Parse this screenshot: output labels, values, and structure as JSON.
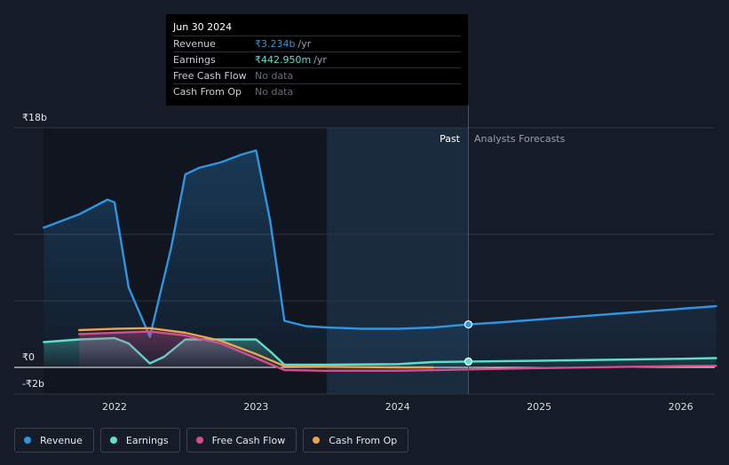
{
  "chart_data": {
    "type": "line",
    "title": "",
    "currency_unit": "₹",
    "y_ticks": [
      {
        "value": 18,
        "label": "₹18b"
      },
      {
        "value": 0,
        "label": "₹0"
      },
      {
        "value": -2,
        "label": "-₹2b"
      }
    ],
    "ylim": [
      -2,
      18
    ],
    "xlim": [
      2021.5,
      2026.25
    ],
    "x_ticks": [
      {
        "value": 2022,
        "label": "2022"
      },
      {
        "value": 2023,
        "label": "2023"
      },
      {
        "value": 2024,
        "label": "2024"
      },
      {
        "value": 2025,
        "label": "2025"
      },
      {
        "value": 2026,
        "label": "2026"
      }
    ],
    "gridlines": [
      18,
      10,
      5,
      0,
      -2
    ],
    "highlight_start": 2023.5,
    "divider_x": 2024.5,
    "past_label": "Past",
    "forecast_label": "Analysts Forecasts",
    "series": [
      {
        "name": "Revenue",
        "color": "#2e95e0",
        "fill": true,
        "x": [
          2021.5,
          2021.75,
          2021.95,
          2022.0,
          2022.1,
          2022.25,
          2022.4,
          2022.5,
          2022.6,
          2022.75,
          2022.9,
          2023.0,
          2023.1,
          2023.2,
          2023.35,
          2023.5,
          2023.75,
          2024.0,
          2024.25,
          2024.5,
          2024.75,
          2025.0,
          2025.5,
          2026.0,
          2026.25
        ],
        "y": [
          10.5,
          11.5,
          12.6,
          12.4,
          6.0,
          2.3,
          9.0,
          14.5,
          15.0,
          15.4,
          16.0,
          16.3,
          11.0,
          3.5,
          3.1,
          3.0,
          2.9,
          2.9,
          3.0,
          3.23,
          3.4,
          3.6,
          4.0,
          4.4,
          4.6
        ]
      },
      {
        "name": "Earnings",
        "color": "#5ce0cc",
        "fill": true,
        "x": [
          2021.5,
          2021.75,
          2022.0,
          2022.1,
          2022.25,
          2022.35,
          2022.5,
          2022.75,
          2023.0,
          2023.1,
          2023.2,
          2023.5,
          2024.0,
          2024.25,
          2024.5,
          2025.0,
          2026.0,
          2026.25
        ],
        "y": [
          1.9,
          2.1,
          2.2,
          1.8,
          0.3,
          0.8,
          2.1,
          2.1,
          2.1,
          1.2,
          0.2,
          0.2,
          0.25,
          0.4,
          0.44,
          0.5,
          0.65,
          0.7
        ]
      },
      {
        "name": "Free Cash Flow",
        "color": "#d14f8e",
        "fill": true,
        "x": [
          2021.75,
          2022.0,
          2022.25,
          2022.5,
          2022.75,
          2023.0,
          2023.2,
          2023.5,
          2024.0,
          2024.5,
          2025.0,
          2026.0,
          2026.25
        ],
        "y": [
          2.5,
          2.6,
          2.7,
          2.4,
          1.8,
          0.7,
          -0.2,
          -0.25,
          -0.25,
          -0.15,
          -0.05,
          0.1,
          0.12
        ]
      },
      {
        "name": "Cash From Op",
        "color": "#e7a552",
        "fill": false,
        "x": [
          2021.75,
          2022.0,
          2022.25,
          2022.5,
          2022.75,
          2023.0,
          2023.2,
          2023.5,
          2024.0,
          2024.25
        ],
        "y": [
          2.8,
          2.9,
          2.95,
          2.6,
          2.0,
          1.0,
          0.1,
          0.05,
          0.0,
          0.0
        ]
      }
    ],
    "markers": [
      {
        "series": "Revenue",
        "x": 2024.5,
        "y": 3.23,
        "color": "#2e95e0"
      },
      {
        "series": "Earnings",
        "x": 2024.5,
        "y": 0.44,
        "color": "#5ce0cc"
      }
    ]
  },
  "tooltip": {
    "date": "Jun 30 2024",
    "rows": [
      {
        "name": "Revenue",
        "value": "₹3.234b",
        "unit": "/yr",
        "color": "#2e95e0"
      },
      {
        "name": "Earnings",
        "value": "₹442.950m",
        "unit": "/yr",
        "color": "#5ce0cc"
      },
      {
        "name": "Free Cash Flow",
        "value": "No data",
        "unit": "",
        "color": ""
      },
      {
        "name": "Cash From Op",
        "value": "No data",
        "unit": "",
        "color": ""
      }
    ]
  },
  "legend": [
    {
      "label": "Revenue",
      "color": "#2e95e0"
    },
    {
      "label": "Earnings",
      "color": "#5ce0cc"
    },
    {
      "label": "Free Cash Flow",
      "color": "#d14f8e"
    },
    {
      "label": "Cash From Op",
      "color": "#e7a552"
    }
  ]
}
